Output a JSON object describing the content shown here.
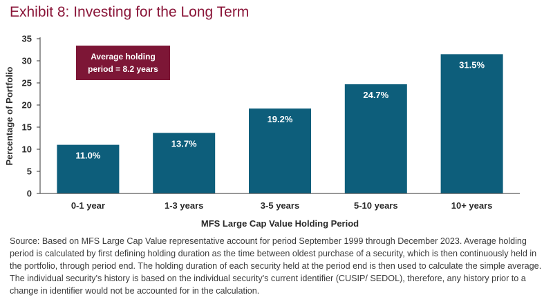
{
  "page": {
    "title": "Exhibit 8: Investing for the Long Term",
    "source_note": "Source: Based on MFS Large Cap Value representative account for period September 1999 through December 2023. Average holding period is calculated by first defining holding duration as the time between oldest purchase of a security, which is then continuously held in the portfolio, through period end. The holding duration of each security held at the period end is then used to calculate the simple average. The individual security's history is based on the individual security's current identifier (CUSIP/ SEDOL), therefore, any history prior to a change in identifier would not be accounted for in the calculation."
  },
  "colors": {
    "bar": "#0d5e7b",
    "bar_label": "#ffffff",
    "callout_bg": "#7d1636",
    "title": "#8a1538",
    "axis_text": "#2a2a2a",
    "axis_line": "#333333"
  },
  "chart_data": {
    "type": "bar",
    "title": "Exhibit 8: Investing for the Long Term",
    "xlabel": "MFS Large Cap Value Holding Period",
    "ylabel": "Percentage of Portfolio",
    "categories": [
      "0-1 year",
      "1-3 years",
      "3-5 years",
      "5-10 years",
      "10+ years"
    ],
    "values": [
      11.0,
      13.7,
      19.2,
      24.7,
      31.5
    ],
    "value_labels": [
      "11.0%",
      "13.7%",
      "19.2%",
      "24.7%",
      "31.5%"
    ],
    "ylim": [
      0,
      35
    ],
    "yticks": [
      0,
      5,
      10,
      15,
      20,
      25,
      30,
      35
    ],
    "grid": false,
    "legend": "none",
    "annotation": {
      "line1": "Average holding",
      "line2": "period = 8.2 years"
    }
  }
}
